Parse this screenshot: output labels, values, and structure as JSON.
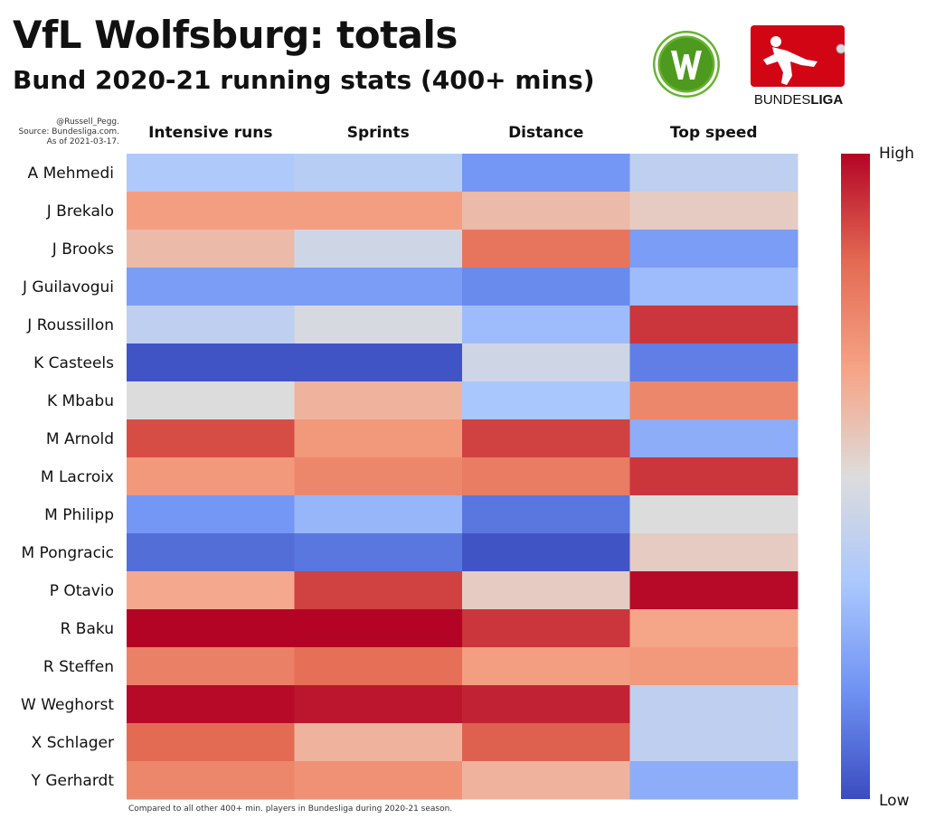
{
  "header": {
    "title": "VfL Wolfsburg: totals",
    "subtitle": "Bund 2020-21 running stats (400+ mins)"
  },
  "credits": {
    "handle": "@Russell_Pegg.",
    "source": "Source: Bundesliga.com.",
    "date": "As of 2021-03-17."
  },
  "footnote": "Compared to all other 400+ min. players in Bundesliga during 2020-21 season.",
  "logos": {
    "club": "VfL Wolfsburg crest (green circle with W)",
    "league_text_light": "BUNDES",
    "league_text_bold": "LIGA"
  },
  "colorbar": {
    "high_label": "High",
    "low_label": "Low",
    "colors": [
      "#3b4cc0",
      "#6f92f3",
      "#aac7fd",
      "#dddcdc",
      "#f6a385",
      "#e36a53",
      "#b40426"
    ]
  },
  "chart_data": {
    "type": "heatmap",
    "columns": [
      "Intensive runs",
      "Sprints",
      "Distance",
      "Top speed"
    ],
    "rows": [
      "A Mehmedi",
      "J Brekalo",
      "J Brooks",
      "J Guilavogui",
      "J Roussillon",
      "K Casteels",
      "K Mbabu",
      "M Arnold",
      "M Lacroix",
      "M Philipp",
      "M Pongracic",
      "P Otavio",
      "R Baku",
      "R Steffen",
      "W Weghorst",
      "X Schlager",
      "Y Gerhardt"
    ],
    "values": [
      [
        0.35,
        0.38,
        0.18,
        0.4
      ],
      [
        0.68,
        0.68,
        0.6,
        0.55
      ],
      [
        0.6,
        0.45,
        0.8,
        0.2
      ],
      [
        0.2,
        0.2,
        0.15,
        0.3
      ],
      [
        0.4,
        0.48,
        0.3,
        0.92
      ],
      [
        0.02,
        0.02,
        0.45,
        0.12
      ],
      [
        0.5,
        0.62,
        0.33,
        0.75
      ],
      [
        0.88,
        0.7,
        0.9,
        0.25
      ],
      [
        0.7,
        0.75,
        0.78,
        0.92
      ],
      [
        0.18,
        0.28,
        0.1,
        0.5
      ],
      [
        0.08,
        0.1,
        0.02,
        0.55
      ],
      [
        0.65,
        0.9,
        0.55,
        0.99
      ],
      [
        1.0,
        1.0,
        0.92,
        0.66
      ],
      [
        0.77,
        0.82,
        0.68,
        0.7
      ],
      [
        0.99,
        0.97,
        0.95,
        0.4
      ],
      [
        0.83,
        0.62,
        0.85,
        0.4
      ],
      [
        0.75,
        0.72,
        0.62,
        0.25
      ]
    ],
    "scale": {
      "low_label": "Low",
      "high_label": "High",
      "colormap": "coolwarm"
    }
  }
}
